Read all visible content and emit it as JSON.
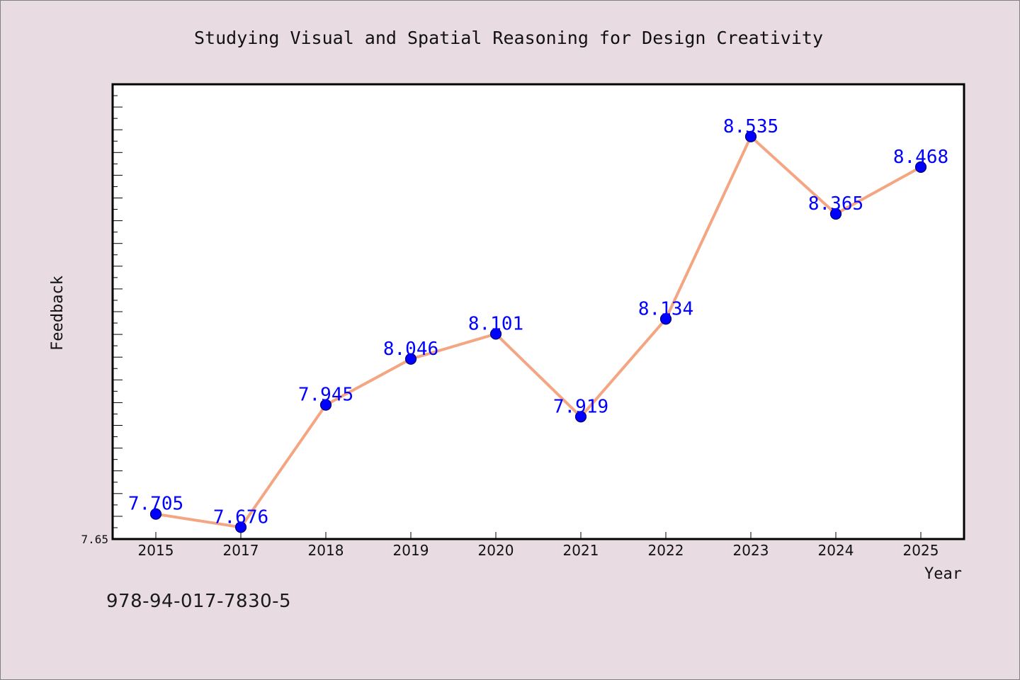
{
  "chart_data": {
    "type": "line",
    "title": "Studying Visual and Spatial Reasoning for Design Creativity",
    "xlabel": "Year",
    "ylabel": "Feedback",
    "categories": [
      "2015",
      "2017",
      "2018",
      "2019",
      "2020",
      "2021",
      "2022",
      "2023",
      "2024",
      "2025"
    ],
    "series": [
      {
        "values": [
          7.705,
          7.676,
          7.945,
          8.046,
          8.101,
          7.919,
          8.134,
          8.535,
          8.365,
          8.468
        ],
        "labels": [
          "7.705",
          "7.676",
          "7.945",
          "8.046",
          "8.101",
          "7.919",
          "8.134",
          "8.535",
          "8.365",
          "8.468"
        ]
      }
    ],
    "y_tick_labels": [
      "7.65"
    ],
    "ylim": [
      7.65,
      8.65
    ],
    "grid": false,
    "colors": {
      "line": "#f4a582",
      "marker": "#0000ff",
      "label": "#0000ff",
      "background": "#e9dbe2",
      "plot_background": "#ffffff"
    }
  },
  "footer": {
    "isbn": "978-94-017-7830-5"
  }
}
